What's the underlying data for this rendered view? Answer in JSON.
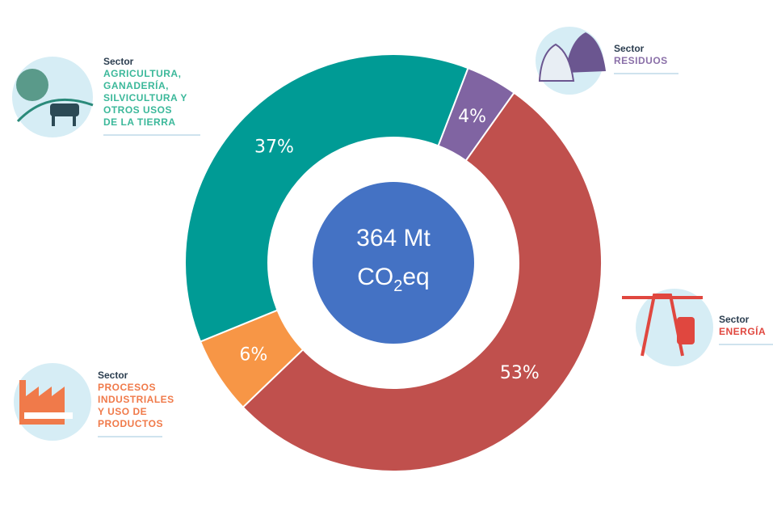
{
  "chart_data": {
    "type": "donut",
    "center_label": {
      "line1": "364 Mt",
      "line2": [
        "CO",
        "2",
        "eq"
      ]
    },
    "categories": [
      "RESIDUOS",
      "ENERGÍA",
      "PROCESOS INDUSTRIALES Y USO DE PRODUCTOS",
      "AGRICULTURA, GANADERÍA, SILVICULTURA Y OTROS USOS DE LA TIERRA"
    ],
    "values": [
      4,
      53,
      6,
      37
    ],
    "value_labels": [
      "4%",
      "53%",
      "6%",
      "37%"
    ],
    "colors": [
      "#8064a2",
      "#c0504d",
      "#f79646",
      "#009b95"
    ],
    "sector_labels": [
      {
        "heading": "Sector",
        "lines": [
          "RESIDUOS"
        ],
        "color": "#8a6fa8"
      },
      {
        "heading": "Sector",
        "lines": [
          "ENERGÍA"
        ],
        "color": "#e0473f"
      },
      {
        "heading": "Sector",
        "lines": [
          "PROCESOS",
          "INDUSTRIALES",
          "Y USO DE",
          "PRODUCTOS"
        ],
        "color": "#f07a4a"
      },
      {
        "heading": "Sector",
        "lines": [
          "AGRICULTURA,",
          "GANADERÍA,",
          "SILVICULTURA Y",
          "OTROS USOS",
          "DE LA TIERRA"
        ],
        "color": "#3bb89a"
      }
    ]
  }
}
